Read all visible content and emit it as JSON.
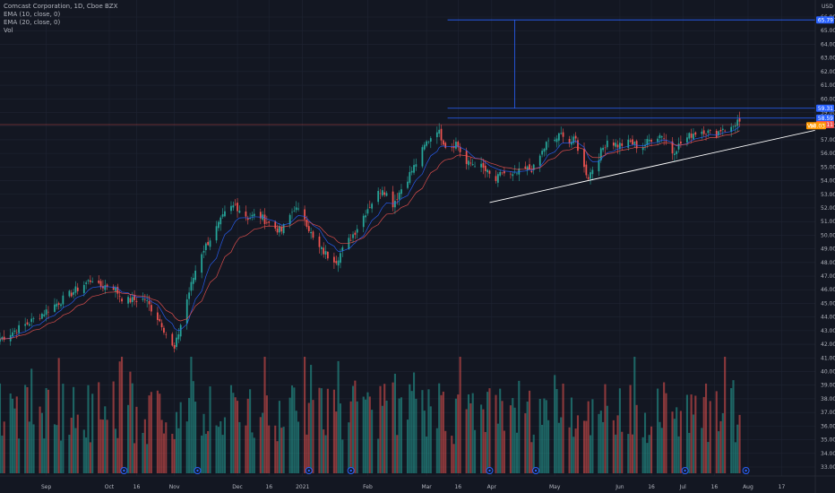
{
  "chart_data": {
    "type": "candlestick",
    "title": "Comcast Corporation, 1D, Cboe BZX",
    "indicators": [
      "EMA (10, close, 0)",
      "EMA (20, close, 0)",
      "Vol"
    ],
    "currency": "USD",
    "y_axis": {
      "range": [
        33.0,
        66.5
      ],
      "ticks": [
        "66.00",
        "65.00",
        "64.00",
        "63.00",
        "62.00",
        "61.00",
        "60.00",
        "59.00",
        "58.00",
        "57.00",
        "56.00",
        "55.00",
        "54.00",
        "53.00",
        "52.00",
        "51.00",
        "50.00",
        "49.00",
        "48.00",
        "47.00",
        "46.00",
        "45.00",
        "44.00",
        "43.00",
        "42.00",
        "41.00",
        "40.00",
        "39.00",
        "38.00",
        "37.00",
        "36.00",
        "35.00",
        "34.00",
        "33.00"
      ]
    },
    "x_axis": {
      "labels": [
        {
          "label": "Sep",
          "day": 3
        },
        {
          "label": "Oct",
          "day": 33
        },
        {
          "label": "16",
          "day": 46
        },
        {
          "label": "Nov",
          "day": 64
        },
        {
          "label": "Dec",
          "day": 94
        },
        {
          "label": "16",
          "day": 109
        },
        {
          "label": "2021",
          "day": 125
        },
        {
          "label": "Feb",
          "day": 156
        },
        {
          "label": "Mar",
          "day": 184
        },
        {
          "label": "16",
          "day": 199
        },
        {
          "label": "Apr",
          "day": 215
        },
        {
          "label": "May",
          "day": 245
        },
        {
          "label": "Jun",
          "day": 276
        },
        {
          "label": "16",
          "day": 291
        },
        {
          "label": "Jul",
          "day": 306
        },
        {
          "label": "16",
          "day": 321
        },
        {
          "label": "Aug",
          "day": 337
        },
        {
          "label": "17",
          "day": 353
        }
      ],
      "day_range": [
        -19,
        369
      ]
    },
    "price_anchors": [
      [
        -19,
        42.4
      ],
      [
        -5,
        43.6
      ],
      [
        10,
        45.2
      ],
      [
        20,
        46.3
      ],
      [
        25,
        46.8
      ],
      [
        28,
        46.2
      ],
      [
        34,
        46.4
      ],
      [
        40,
        45.2
      ],
      [
        50,
        45.3
      ],
      [
        58,
        43.5
      ],
      [
        62,
        42.0
      ],
      [
        64,
        41.6
      ],
      [
        70,
        45.3
      ],
      [
        76,
        48.5
      ],
      [
        84,
        50.5
      ],
      [
        89,
        51.8
      ],
      [
        93,
        52.2
      ],
      [
        99,
        51.3
      ],
      [
        104,
        51.5
      ],
      [
        111,
        50.6
      ],
      [
        115,
        50.3
      ],
      [
        121,
        52.0
      ],
      [
        126,
        51.3
      ],
      [
        131,
        49.3
      ],
      [
        137,
        48.5
      ],
      [
        141,
        48.2
      ],
      [
        144,
        48.9
      ],
      [
        150,
        50.3
      ],
      [
        156,
        52.0
      ],
      [
        163,
        53.5
      ],
      [
        168,
        52.3
      ],
      [
        173,
        53.7
      ],
      [
        178,
        55.0
      ],
      [
        184,
        56.8
      ],
      [
        189,
        57.8
      ],
      [
        191,
        57.2
      ],
      [
        194,
        56.3
      ],
      [
        198,
        56.8
      ],
      [
        203,
        55.2
      ],
      [
        208,
        55.3
      ],
      [
        214,
        54.4
      ],
      [
        216,
        53.8
      ],
      [
        220,
        54.6
      ],
      [
        225,
        54.3
      ],
      [
        230,
        54.8
      ],
      [
        235,
        54.9
      ],
      [
        241,
        56.7
      ],
      [
        245,
        57.0
      ],
      [
        250,
        57.6
      ],
      [
        252,
        56.8
      ],
      [
        255,
        57.0
      ],
      [
        258,
        55.2
      ],
      [
        261,
        54.3
      ],
      [
        266,
        55.8
      ],
      [
        270,
        57.0
      ],
      [
        275,
        56.6
      ],
      [
        281,
        56.8
      ],
      [
        286,
        56.4
      ],
      [
        291,
        57.1
      ],
      [
        296,
        57.4
      ],
      [
        301,
        56.1
      ],
      [
        306,
        56.9
      ],
      [
        311,
        57.5
      ],
      [
        316,
        57.7
      ],
      [
        321,
        57.3
      ],
      [
        325,
        57.9
      ],
      [
        328,
        57.6
      ],
      [
        332,
        58.4
      ],
      [
        333,
        58.1
      ]
    ],
    "volume_level": "varies",
    "horizontal_levels": [
      {
        "value": 65.79,
        "label": "65.79",
        "color": "#2962ff"
      },
      {
        "value": 59.31,
        "label": "59.31",
        "color": "#2962ff"
      },
      {
        "value": 58.59,
        "label": "58.59",
        "color": "#2962ff"
      },
      {
        "value": 58.11,
        "label": "58.11",
        "color": "#ef5350"
      },
      {
        "value": 58.03,
        "label": "58.03",
        "color": "#ff9800",
        "prefix": "Vol"
      }
    ],
    "measure_line": {
      "day": 226,
      "from": 59.31,
      "to": 65.79
    },
    "level_start_day": 194,
    "trendline": {
      "from": [
        214,
        52.4
      ],
      "to": [
        369,
        57.7
      ],
      "color": "#ffffff"
    },
    "events": [
      40,
      75,
      128,
      148,
      214,
      236,
      307,
      336
    ],
    "colors": {
      "up": "#26a69a",
      "down": "#ef5350",
      "bg": "#131722",
      "grid": "#1f2433",
      "ema10": "#2962ff",
      "ema20": "#ef5350",
      "axis_text": "#b2b5be"
    }
  }
}
